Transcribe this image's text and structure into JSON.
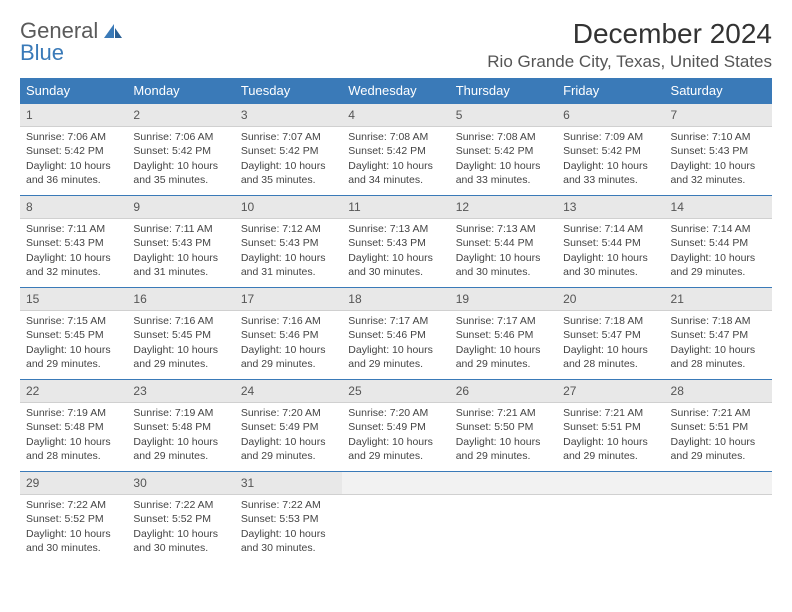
{
  "brand": {
    "part1": "General",
    "part2": "Blue",
    "accent_color": "#3a7ab8",
    "text_color": "#5a5a5a"
  },
  "title": "December 2024",
  "location": "Rio Grande City, Texas, United States",
  "header_bg": "#3a7ab8",
  "daynum_bg": "#e8e8e8",
  "border_color": "#3a7ab8",
  "weekdays": [
    "Sunday",
    "Monday",
    "Tuesday",
    "Wednesday",
    "Thursday",
    "Friday",
    "Saturday"
  ],
  "days": [
    {
      "n": "1",
      "sr": "Sunrise: 7:06 AM",
      "ss": "Sunset: 5:42 PM",
      "dl": "Daylight: 10 hours and 36 minutes."
    },
    {
      "n": "2",
      "sr": "Sunrise: 7:06 AM",
      "ss": "Sunset: 5:42 PM",
      "dl": "Daylight: 10 hours and 35 minutes."
    },
    {
      "n": "3",
      "sr": "Sunrise: 7:07 AM",
      "ss": "Sunset: 5:42 PM",
      "dl": "Daylight: 10 hours and 35 minutes."
    },
    {
      "n": "4",
      "sr": "Sunrise: 7:08 AM",
      "ss": "Sunset: 5:42 PM",
      "dl": "Daylight: 10 hours and 34 minutes."
    },
    {
      "n": "5",
      "sr": "Sunrise: 7:08 AM",
      "ss": "Sunset: 5:42 PM",
      "dl": "Daylight: 10 hours and 33 minutes."
    },
    {
      "n": "6",
      "sr": "Sunrise: 7:09 AM",
      "ss": "Sunset: 5:42 PM",
      "dl": "Daylight: 10 hours and 33 minutes."
    },
    {
      "n": "7",
      "sr": "Sunrise: 7:10 AM",
      "ss": "Sunset: 5:43 PM",
      "dl": "Daylight: 10 hours and 32 minutes."
    },
    {
      "n": "8",
      "sr": "Sunrise: 7:11 AM",
      "ss": "Sunset: 5:43 PM",
      "dl": "Daylight: 10 hours and 32 minutes."
    },
    {
      "n": "9",
      "sr": "Sunrise: 7:11 AM",
      "ss": "Sunset: 5:43 PM",
      "dl": "Daylight: 10 hours and 31 minutes."
    },
    {
      "n": "10",
      "sr": "Sunrise: 7:12 AM",
      "ss": "Sunset: 5:43 PM",
      "dl": "Daylight: 10 hours and 31 minutes."
    },
    {
      "n": "11",
      "sr": "Sunrise: 7:13 AM",
      "ss": "Sunset: 5:43 PM",
      "dl": "Daylight: 10 hours and 30 minutes."
    },
    {
      "n": "12",
      "sr": "Sunrise: 7:13 AM",
      "ss": "Sunset: 5:44 PM",
      "dl": "Daylight: 10 hours and 30 minutes."
    },
    {
      "n": "13",
      "sr": "Sunrise: 7:14 AM",
      "ss": "Sunset: 5:44 PM",
      "dl": "Daylight: 10 hours and 30 minutes."
    },
    {
      "n": "14",
      "sr": "Sunrise: 7:14 AM",
      "ss": "Sunset: 5:44 PM",
      "dl": "Daylight: 10 hours and 29 minutes."
    },
    {
      "n": "15",
      "sr": "Sunrise: 7:15 AM",
      "ss": "Sunset: 5:45 PM",
      "dl": "Daylight: 10 hours and 29 minutes."
    },
    {
      "n": "16",
      "sr": "Sunrise: 7:16 AM",
      "ss": "Sunset: 5:45 PM",
      "dl": "Daylight: 10 hours and 29 minutes."
    },
    {
      "n": "17",
      "sr": "Sunrise: 7:16 AM",
      "ss": "Sunset: 5:46 PM",
      "dl": "Daylight: 10 hours and 29 minutes."
    },
    {
      "n": "18",
      "sr": "Sunrise: 7:17 AM",
      "ss": "Sunset: 5:46 PM",
      "dl": "Daylight: 10 hours and 29 minutes."
    },
    {
      "n": "19",
      "sr": "Sunrise: 7:17 AM",
      "ss": "Sunset: 5:46 PM",
      "dl": "Daylight: 10 hours and 29 minutes."
    },
    {
      "n": "20",
      "sr": "Sunrise: 7:18 AM",
      "ss": "Sunset: 5:47 PM",
      "dl": "Daylight: 10 hours and 28 minutes."
    },
    {
      "n": "21",
      "sr": "Sunrise: 7:18 AM",
      "ss": "Sunset: 5:47 PM",
      "dl": "Daylight: 10 hours and 28 minutes."
    },
    {
      "n": "22",
      "sr": "Sunrise: 7:19 AM",
      "ss": "Sunset: 5:48 PM",
      "dl": "Daylight: 10 hours and 28 minutes."
    },
    {
      "n": "23",
      "sr": "Sunrise: 7:19 AM",
      "ss": "Sunset: 5:48 PM",
      "dl": "Daylight: 10 hours and 29 minutes."
    },
    {
      "n": "24",
      "sr": "Sunrise: 7:20 AM",
      "ss": "Sunset: 5:49 PM",
      "dl": "Daylight: 10 hours and 29 minutes."
    },
    {
      "n": "25",
      "sr": "Sunrise: 7:20 AM",
      "ss": "Sunset: 5:49 PM",
      "dl": "Daylight: 10 hours and 29 minutes."
    },
    {
      "n": "26",
      "sr": "Sunrise: 7:21 AM",
      "ss": "Sunset: 5:50 PM",
      "dl": "Daylight: 10 hours and 29 minutes."
    },
    {
      "n": "27",
      "sr": "Sunrise: 7:21 AM",
      "ss": "Sunset: 5:51 PM",
      "dl": "Daylight: 10 hours and 29 minutes."
    },
    {
      "n": "28",
      "sr": "Sunrise: 7:21 AM",
      "ss": "Sunset: 5:51 PM",
      "dl": "Daylight: 10 hours and 29 minutes."
    },
    {
      "n": "29",
      "sr": "Sunrise: 7:22 AM",
      "ss": "Sunset: 5:52 PM",
      "dl": "Daylight: 10 hours and 30 minutes."
    },
    {
      "n": "30",
      "sr": "Sunrise: 7:22 AM",
      "ss": "Sunset: 5:52 PM",
      "dl": "Daylight: 10 hours and 30 minutes."
    },
    {
      "n": "31",
      "sr": "Sunrise: 7:22 AM",
      "ss": "Sunset: 5:53 PM",
      "dl": "Daylight: 10 hours and 30 minutes."
    }
  ],
  "grid": {
    "first_day_offset": 0,
    "total_cells": 35
  }
}
